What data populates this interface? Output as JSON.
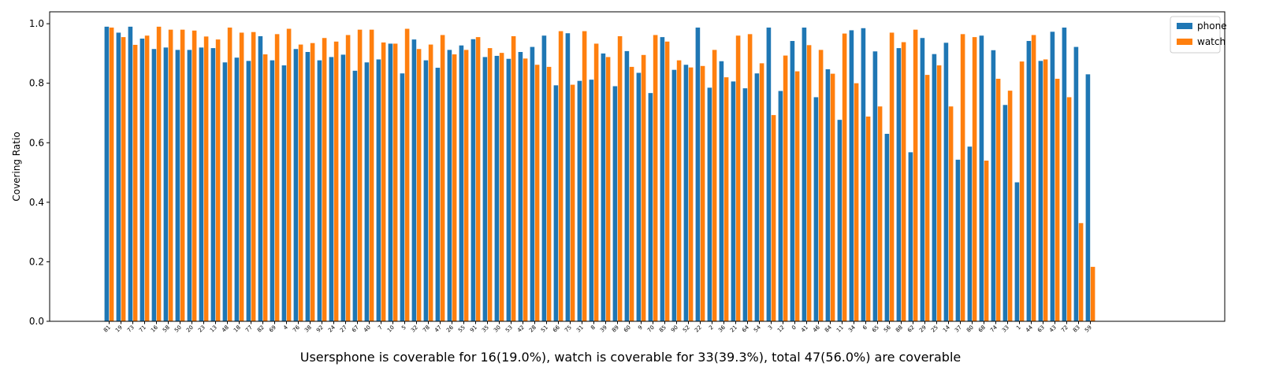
{
  "chart_data": {
    "type": "bar",
    "title": "",
    "xlabel": "",
    "ylabel": "Covering Ratio",
    "ylim": [
      0,
      1.04
    ],
    "yticks": [
      "0.0",
      "0.2",
      "0.4",
      "0.6",
      "0.8",
      "1.0"
    ],
    "grid": false,
    "legend_position": "top-right",
    "categories": [
      "81",
      "19",
      "73",
      "71",
      "16",
      "58",
      "50",
      "20",
      "23",
      "13",
      "48",
      "18",
      "77",
      "82",
      "69",
      "4",
      "76",
      "38",
      "92",
      "24",
      "27",
      "67",
      "40",
      "7",
      "10",
      "5",
      "32",
      "78",
      "47",
      "26",
      "55",
      "91",
      "35",
      "30",
      "53",
      "42",
      "28",
      "51",
      "66",
      "75",
      "31",
      "8",
      "39",
      "89",
      "60",
      "9",
      "70",
      "85",
      "90",
      "52",
      "22",
      "2",
      "36",
      "21",
      "64",
      "54",
      "3",
      "12",
      "0",
      "41",
      "46",
      "84",
      "11",
      "34",
      "6",
      "65",
      "56",
      "88",
      "62",
      "29",
      "25",
      "14",
      "37",
      "80",
      "68",
      "74",
      "33",
      "1",
      "44",
      "63",
      "43",
      "72",
      "83",
      "59"
    ],
    "series": [
      {
        "name": "phone",
        "color": "#1f77b4",
        "values": [
          0.99,
          0.97,
          0.99,
          0.95,
          0.915,
          0.92,
          0.912,
          0.912,
          0.92,
          0.918,
          0.87,
          0.886,
          0.875,
          0.958,
          0.877,
          0.86,
          0.915,
          0.905,
          0.877,
          0.888,
          0.896,
          0.842,
          0.87,
          0.88,
          0.933,
          0.833,
          0.947,
          0.877,
          0.852,
          0.912,
          0.927,
          0.948,
          0.888,
          0.892,
          0.882,
          0.905,
          0.922,
          0.96,
          0.793,
          0.968,
          0.808,
          0.812,
          0.9,
          0.79,
          0.908,
          0.835,
          0.767,
          0.955,
          0.845,
          0.862,
          0.987,
          0.785,
          0.874,
          0.806,
          0.783,
          0.833,
          0.987,
          0.774,
          0.942,
          0.987,
          0.753,
          0.847,
          0.677,
          0.978,
          0.985,
          0.907,
          0.63,
          0.918,
          0.568,
          0.952,
          0.898,
          0.936,
          0.543,
          0.587,
          0.96,
          0.911,
          0.727,
          0.467,
          0.942,
          0.875,
          0.973,
          0.987,
          0.922,
          0.83
        ]
      },
      {
        "name": "watch",
        "color": "#ff7f0e",
        "values": [
          0.987,
          0.955,
          0.929,
          0.96,
          0.99,
          0.98,
          0.98,
          0.977,
          0.957,
          0.947,
          0.987,
          0.97,
          0.972,
          0.897,
          0.965,
          0.983,
          0.93,
          0.935,
          0.952,
          0.94,
          0.962,
          0.98,
          0.98,
          0.937,
          0.933,
          0.983,
          0.915,
          0.93,
          0.962,
          0.897,
          0.912,
          0.955,
          0.918,
          0.902,
          0.958,
          0.883,
          0.862,
          0.855,
          0.975,
          0.795,
          0.975,
          0.933,
          0.888,
          0.958,
          0.855,
          0.895,
          0.962,
          0.94,
          0.877,
          0.853,
          0.858,
          0.912,
          0.82,
          0.96,
          0.965,
          0.867,
          0.693,
          0.893,
          0.84,
          0.928,
          0.912,
          0.832,
          0.967,
          0.8,
          0.688,
          0.722,
          0.97,
          0.938,
          0.98,
          0.828,
          0.86,
          0.722,
          0.965,
          0.955,
          0.54,
          0.815,
          0.775,
          0.873,
          0.962,
          0.88,
          0.815,
          0.753,
          0.33,
          0.183
        ]
      }
    ]
  },
  "caption": "Usersphone is coverable for 16(19.0%), watch is coverable for 33(39.3%), total 47(56.0%) are coverable"
}
